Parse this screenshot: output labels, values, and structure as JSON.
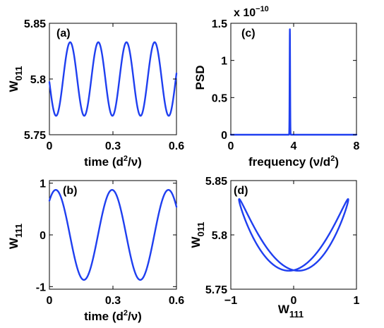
{
  "line_color": "#1f3ff0",
  "chart_data": [
    {
      "type": "line",
      "panel_label": "(a)",
      "xlabel_main": "time (d",
      "xlabel_sup": "2",
      "xlabel_end": "/ν)",
      "ylabel_main": "W",
      "ylabel_sub": "011",
      "xlim": [
        0,
        0.6
      ],
      "ylim": [
        5.75,
        5.85
      ],
      "xticks": [
        "0",
        "0.3",
        "0.6"
      ],
      "yticks": [
        "5.75",
        "5.8",
        "5.85"
      ],
      "series": [
        {
          "mean": 5.8,
          "amplitude": 0.033,
          "period": 0.133,
          "peak_at": 0.098
        }
      ]
    },
    {
      "type": "line",
      "panel_label": "(c)",
      "xlabel_main": "frequency (ν/d",
      "xlabel_sup": "2",
      "xlabel_end": ")",
      "ylabel_main": "PSD",
      "ylabel_sub": "",
      "multiplier_main": "x 10",
      "multiplier_exp": "−10",
      "xlim": [
        0,
        8
      ],
      "ylim": [
        0,
        1.5
      ],
      "xticks": [
        "0",
        "4",
        "8"
      ],
      "yticks": [
        "0",
        "0.5",
        "1",
        "1.5"
      ],
      "series": [
        {
          "peak_frequency": 3.76,
          "peak_value": 1.42
        }
      ]
    },
    {
      "type": "line",
      "panel_label": "(b)",
      "xlabel_main": "time (d",
      "xlabel_sup": "2",
      "xlabel_end": "/ν)",
      "ylabel_main": "W",
      "ylabel_sub": "111",
      "xlim": [
        0,
        0.6
      ],
      "ylim": [
        -1.05,
        1.05
      ],
      "xticks": [
        "0",
        "0.3",
        "0.6"
      ],
      "yticks": [
        "-1",
        "0",
        "1"
      ],
      "series": [
        {
          "mean": 0,
          "amplitude": 0.87,
          "period": 0.266,
          "peak_at": 0.03
        }
      ]
    },
    {
      "type": "line",
      "panel_label": "(d)",
      "xlabel_main": "W",
      "xlabel_sub": "111",
      "ylabel_main": "W",
      "ylabel_sub": "011",
      "xlim": [
        -1,
        1
      ],
      "ylim": [
        5.75,
        5.85
      ],
      "xticks": [
        "−1",
        "0",
        "1"
      ],
      "yticks": [
        "5.75",
        "5.8",
        "5.85"
      ],
      "series": [
        {
          "x_amplitude": 0.87,
          "y_mean": 5.8,
          "y_amplitude": 0.033,
          "phase_offset_deg": 10
        }
      ]
    }
  ]
}
